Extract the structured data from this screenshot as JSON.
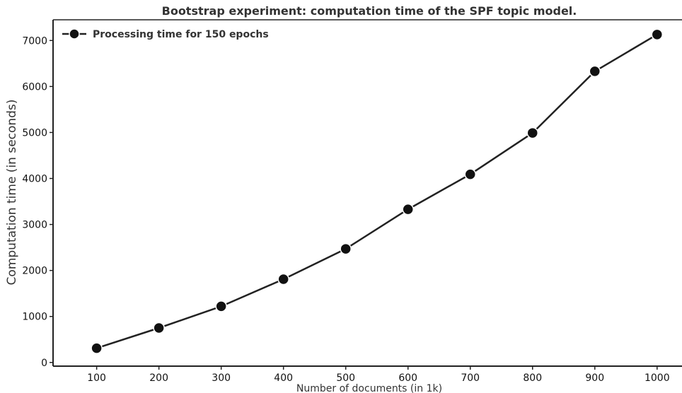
{
  "chart_data": {
    "type": "line",
    "title": "Bootstrap experiment: computation time of the SPF topic model.",
    "xlabel": "Number of documents (in 1k)",
    "ylabel": "Computation time (in seconds)",
    "x": [
      100,
      200,
      300,
      400,
      500,
      600,
      700,
      800,
      900,
      1000
    ],
    "x_ticks": [
      "100",
      "200",
      "300",
      "400",
      "500",
      "600",
      "700",
      "800",
      "900",
      "1000"
    ],
    "y_ticks": [
      "0",
      "1000",
      "2000",
      "3000",
      "4000",
      "5000",
      "6000",
      "7000"
    ],
    "xlim": [
      30,
      1040
    ],
    "ylim": [
      -80,
      7450
    ],
    "series": [
      {
        "name": "Processing time for 150 epochs",
        "values": [
          310,
          750,
          1220,
          1810,
          2470,
          3330,
          4090,
          4990,
          6330,
          7130
        ],
        "color": "#222222",
        "marker": "circle"
      }
    ],
    "legend_position": "top-left",
    "grid": false
  }
}
